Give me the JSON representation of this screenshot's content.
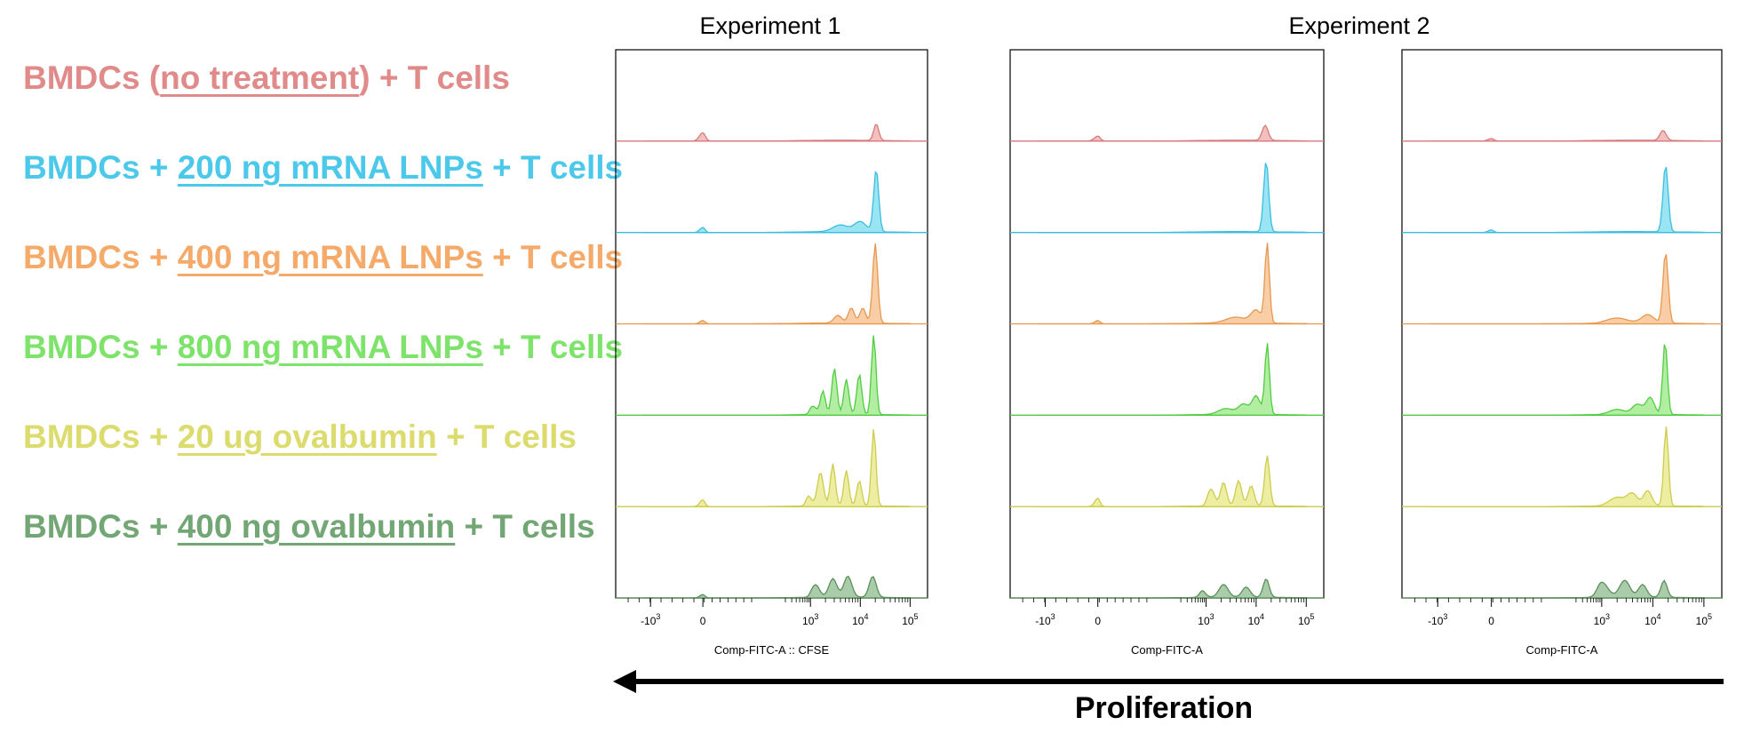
{
  "legend": [
    {
      "prefix": "BMDCs (",
      "underlined": "no treatment",
      "suffix": ") + T cells",
      "color": "#e08a8a"
    },
    {
      "prefix": "BMDCs + ",
      "underlined": "200 ng mRNA LNPs",
      "suffix": " + T cells",
      "color": "#4cc9ea"
    },
    {
      "prefix": "BMDCs + ",
      "underlined": "400 ng mRNA LNPs",
      "suffix": " + T cells",
      "color": "#f5aa6a"
    },
    {
      "prefix": "BMDCs + ",
      "underlined": "800 ng mRNA LNPs",
      "suffix": " + T cells",
      "color": "#7ee36a"
    },
    {
      "prefix": "BMDCs + ",
      "underlined": "20 ug ovalbumin",
      "suffix": " + T cells",
      "color": "#dcdc6e"
    },
    {
      "prefix": "BMDCs + ",
      "underlined": "400 ng ovalbumin",
      "suffix": " + T cells",
      "color": "#72a674"
    }
  ],
  "experiments": [
    {
      "title": "Experiment 1"
    },
    {
      "title": "Experiment 2"
    }
  ],
  "arrow_label": "Proliferation",
  "chart_data": [
    {
      "type": "area",
      "xlabel": "Comp-FITC-A :: CFSE",
      "x_scale": "biexponential",
      "x_ticks": [
        "-10^3",
        "0",
        "10^3",
        "10^4",
        "10^5"
      ],
      "series": [
        {
          "fill": "#f2b8b8",
          "stroke": "#d97a7a",
          "peaks": [
            [
              0,
              0.1,
              0.07
            ],
            [
              4.32,
              0.2,
              0.05
            ]
          ]
        },
        {
          "fill": "#8fe2f2",
          "stroke": "#3bbde0",
          "peaks": [
            [
              0,
              0.06,
              0.06
            ],
            [
              3.6,
              0.08,
              0.15
            ],
            [
              4.0,
              0.12,
              0.12
            ],
            [
              4.32,
              0.75,
              0.05
            ]
          ]
        },
        {
          "fill": "#f8c99c",
          "stroke": "#e7984f",
          "peaks": [
            [
              0,
              0.04,
              0.06
            ],
            [
              3.55,
              0.09,
              0.08
            ],
            [
              3.82,
              0.18,
              0.06
            ],
            [
              4.05,
              0.18,
              0.06
            ],
            [
              4.3,
              0.95,
              0.05
            ]
          ]
        },
        {
          "fill": "#a8ec98",
          "stroke": "#52cc42",
          "peaks": [
            [
              3.05,
              0.1,
              0.07
            ],
            [
              3.25,
              0.28,
              0.05
            ],
            [
              3.48,
              0.55,
              0.05
            ],
            [
              3.72,
              0.42,
              0.05
            ],
            [
              3.98,
              0.48,
              0.05
            ],
            [
              4.27,
              0.95,
              0.045
            ]
          ]
        },
        {
          "fill": "#ecec98",
          "stroke": "#cccc4e",
          "peaks": [
            [
              0,
              0.08,
              0.06
            ],
            [
              2.95,
              0.12,
              0.07
            ],
            [
              3.2,
              0.4,
              0.06
            ],
            [
              3.45,
              0.5,
              0.05
            ],
            [
              3.72,
              0.42,
              0.05
            ],
            [
              3.98,
              0.3,
              0.05
            ],
            [
              4.27,
              0.92,
              0.045
            ]
          ]
        },
        {
          "fill": "#a2c6a2",
          "stroke": "#5a905a",
          "peaks": [
            [
              0,
              0.04,
              0.06
            ],
            [
              3.1,
              0.15,
              0.08
            ],
            [
              3.45,
              0.22,
              0.08
            ],
            [
              3.75,
              0.25,
              0.08
            ],
            [
              4.25,
              0.25,
              0.07
            ]
          ]
        }
      ]
    },
    {
      "type": "area",
      "xlabel": "Comp-FITC-A",
      "x_scale": "biexponential",
      "x_ticks": [
        "-10^3",
        "0",
        "10^3",
        "10^4",
        "10^5"
      ],
      "series": [
        {
          "fill": "#f2b8b8",
          "stroke": "#d97a7a",
          "peaks": [
            [
              0,
              0.06,
              0.07
            ],
            [
              4.18,
              0.18,
              0.06
            ]
          ]
        },
        {
          "fill": "#8fe2f2",
          "stroke": "#3bbde0",
          "peaks": [
            [
              4.2,
              0.85,
              0.05
            ]
          ]
        },
        {
          "fill": "#f8c99c",
          "stroke": "#e7984f",
          "peaks": [
            [
              0,
              0.04,
              0.06
            ],
            [
              3.6,
              0.07,
              0.2
            ],
            [
              4.0,
              0.15,
              0.1
            ],
            [
              4.22,
              0.95,
              0.045
            ]
          ]
        },
        {
          "fill": "#a8ec98",
          "stroke": "#52cc42",
          "peaks": [
            [
              3.4,
              0.07,
              0.15
            ],
            [
              3.75,
              0.12,
              0.1
            ],
            [
              4.0,
              0.22,
              0.08
            ],
            [
              4.22,
              0.85,
              0.045
            ]
          ]
        },
        {
          "fill": "#ecec98",
          "stroke": "#cccc4e",
          "peaks": [
            [
              0,
              0.1,
              0.06
            ],
            [
              3.1,
              0.2,
              0.07
            ],
            [
              3.35,
              0.28,
              0.06
            ],
            [
              3.65,
              0.3,
              0.06
            ],
            [
              3.9,
              0.24,
              0.06
            ],
            [
              4.22,
              0.6,
              0.05
            ]
          ]
        },
        {
          "fill": "#a2c6a2",
          "stroke": "#5a905a",
          "peaks": [
            [
              2.9,
              0.08,
              0.08
            ],
            [
              3.35,
              0.15,
              0.09
            ],
            [
              3.8,
              0.12,
              0.08
            ],
            [
              4.2,
              0.22,
              0.06
            ]
          ]
        }
      ]
    },
    {
      "type": "area",
      "xlabel": "Comp-FITC-A",
      "x_scale": "biexponential",
      "x_ticks": [
        "-10^3",
        "0",
        "10^3",
        "10^4",
        "10^5"
      ],
      "series": [
        {
          "fill": "#f2b8b8",
          "stroke": "#d97a7a",
          "peaks": [
            [
              0,
              0.03,
              0.07
            ],
            [
              4.2,
              0.12,
              0.06
            ]
          ]
        },
        {
          "fill": "#8fe2f2",
          "stroke": "#3bbde0",
          "peaks": [
            [
              0,
              0.03,
              0.06
            ],
            [
              4.25,
              0.8,
              0.05
            ]
          ]
        },
        {
          "fill": "#f8c99c",
          "stroke": "#e7984f",
          "peaks": [
            [
              3.3,
              0.06,
              0.2
            ],
            [
              3.9,
              0.1,
              0.12
            ],
            [
              4.25,
              0.85,
              0.05
            ]
          ]
        },
        {
          "fill": "#a8ec98",
          "stroke": "#52cc42",
          "peaks": [
            [
              3.3,
              0.06,
              0.15
            ],
            [
              3.7,
              0.12,
              0.1
            ],
            [
              3.95,
              0.2,
              0.08
            ],
            [
              4.24,
              0.88,
              0.045
            ]
          ]
        },
        {
          "fill": "#ecec98",
          "stroke": "#cccc4e",
          "peaks": [
            [
              3.3,
              0.1,
              0.15
            ],
            [
              3.6,
              0.14,
              0.1
            ],
            [
              3.9,
              0.18,
              0.08
            ],
            [
              4.26,
              0.95,
              0.045
            ]
          ]
        },
        {
          "fill": "#a2c6a2",
          "stroke": "#5a905a",
          "peaks": [
            [
              3.0,
              0.18,
              0.12
            ],
            [
              3.45,
              0.2,
              0.1
            ],
            [
              3.8,
              0.15,
              0.08
            ],
            [
              4.22,
              0.2,
              0.06
            ]
          ]
        }
      ]
    }
  ]
}
